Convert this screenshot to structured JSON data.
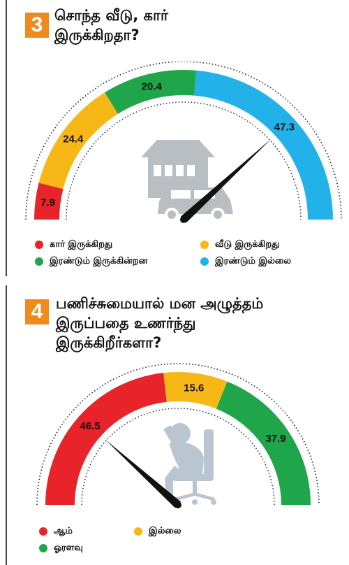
{
  "charts": [
    {
      "number": "3",
      "title_lines": [
        "சொந்த வீடு, கார்",
        "இருக்கிறதா?"
      ],
      "legend": [
        {
          "label": "கார் இருக்கிறது",
          "color": "#e8232a"
        },
        {
          "label": "வீடு இருக்கிறது",
          "color": "#f7b817"
        },
        {
          "label": "இரண்டும் இருக்கின்றன",
          "color": "#1fa54a"
        },
        {
          "label": "இரண்டும் இல்லை",
          "color": "#22b1e8"
        }
      ]
    },
    {
      "number": "4",
      "title_lines": [
        "பணிச்சுமையால் மன அழுத்தம்",
        "இருப்பதை உணர்ந்து",
        "இருக்கிறீர்களா?"
      ],
      "legend": [
        {
          "label": "ஆம்",
          "color": "#e8232a"
        },
        {
          "label": "இல்லை",
          "color": "#f7b817"
        },
        {
          "label": "ஓரளவு",
          "color": "#1fa54a"
        }
      ]
    }
  ],
  "chart_data": [
    {
      "type": "gauge",
      "title": "சொந்த வீடு, கார் இருக்கிறதா?",
      "unit": "%",
      "segments": [
        {
          "label": "கார் இருக்கிறது",
          "value": 7.9,
          "color": "#e8232a"
        },
        {
          "label": "வீடு இருக்கிறது",
          "value": 24.4,
          "color": "#f7b817"
        },
        {
          "label": "இரண்டும் இருக்கின்றன",
          "value": 20.4,
          "color": "#1fa54a"
        },
        {
          "label": "இரண்டும் இல்லை",
          "value": 47.3,
          "color": "#22b1e8"
        }
      ],
      "needle_category": "இரண்டும் இல்லை",
      "icon": "house-car-icon"
    },
    {
      "type": "gauge",
      "title": "பணிச்சுமையால் மன அழுத்தம் இருப்பதை உணர்ந்து இருக்கிறீர்களா?",
      "unit": "%",
      "segments": [
        {
          "label": "ஆம்",
          "value": 46.5,
          "color": "#e8232a"
        },
        {
          "label": "இல்லை",
          "value": 15.6,
          "color": "#f7b817"
        },
        {
          "label": "ஓரளவு",
          "value": 37.9,
          "color": "#1fa54a"
        }
      ],
      "needle_category": "ஆம்",
      "icon": "stressed-person-chair-icon"
    }
  ]
}
